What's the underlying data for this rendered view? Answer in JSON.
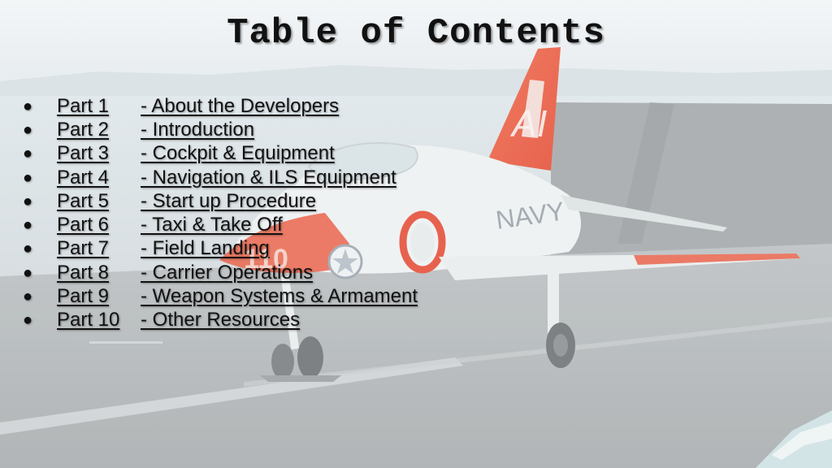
{
  "slide": {
    "title": "Table of Contents",
    "bullet_glyph": "●",
    "items": [
      {
        "part": "Part 1",
        "desc": "- About the Developers"
      },
      {
        "part": "Part 2",
        "desc": "- Introduction"
      },
      {
        "part": "Part 3",
        "desc": "- Cockpit & Equipment"
      },
      {
        "part": "Part 4",
        "desc": "- Navigation & ILS Equipment"
      },
      {
        "part": "Part 5",
        "desc": "- Start up Procedure"
      },
      {
        "part": "Part 6",
        "desc": "- Taxi & Take Off"
      },
      {
        "part": "Part 7",
        "desc": "- Field Landing"
      },
      {
        "part": "Part 8",
        "desc": "- Carrier Operations"
      },
      {
        "part": "Part 9",
        "desc": "- Weapon Systems & Armament"
      },
      {
        "part": "Part 10",
        "desc": "- Other Resources"
      }
    ]
  },
  "background": {
    "aircraft_tail_text": "AI",
    "aircraft_fuselage_text": "NAVY",
    "aircraft_nose_text": "110",
    "accent_color": "#e8553a"
  }
}
